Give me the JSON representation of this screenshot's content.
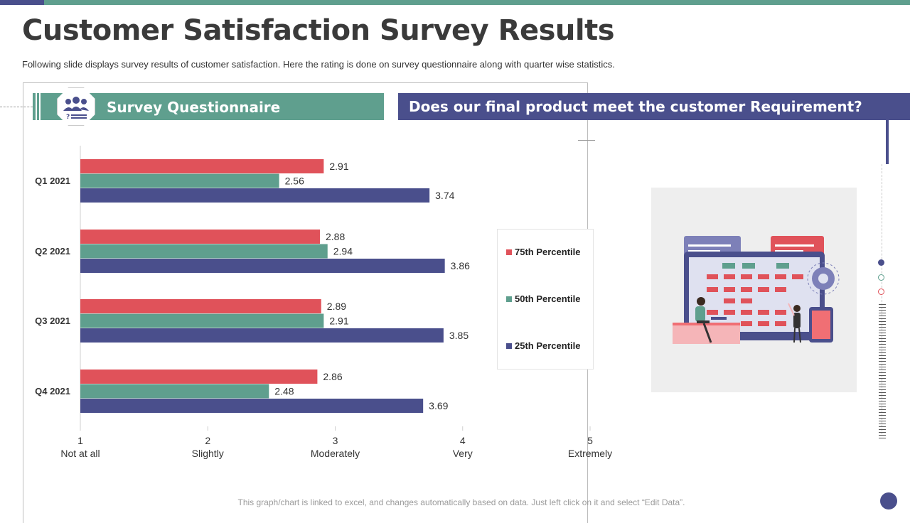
{
  "title": "Customer Satisfaction Survey Results",
  "subtitle": "Following slide displays survey results of customer satisfaction. Here the rating is done on survey questionnaire along with quarter wise statistics.",
  "survey_banner": {
    "label": "Survey Questionnaire",
    "icon": "people-group-icon"
  },
  "question": "Does our final product meet the customer Requirement?",
  "footer_note": "This graph/chart is linked to excel, and changes automatically based on data. Just left click on it and select “Edit Data”.",
  "colors": {
    "accent_teal": "#5f9f8e",
    "accent_navy": "#4a4f8c",
    "accent_red": "#e0525a"
  },
  "chart_data": {
    "type": "bar",
    "orientation": "horizontal",
    "categories": [
      "Q1 2021",
      "Q2 2021",
      "Q3 2021",
      "Q4 2021"
    ],
    "series": [
      {
        "name": "75th Percentile",
        "color": "#e0525a",
        "values": [
          2.91,
          2.88,
          2.89,
          2.86
        ]
      },
      {
        "name": "50th Percentile",
        "color": "#5f9f8e",
        "values": [
          2.56,
          2.94,
          2.91,
          2.48
        ]
      },
      {
        "name": "25th Percentile",
        "color": "#4a4f8c",
        "values": [
          3.74,
          3.86,
          3.85,
          3.69
        ]
      }
    ],
    "xlim": [
      1,
      5
    ],
    "x_ticks": [
      1,
      2,
      3,
      4,
      5
    ],
    "x_tick_labels": [
      "Not at all",
      "Slightly",
      "Moderately",
      "Very",
      "Extremely"
    ],
    "grid": false,
    "legend_position": "right"
  }
}
